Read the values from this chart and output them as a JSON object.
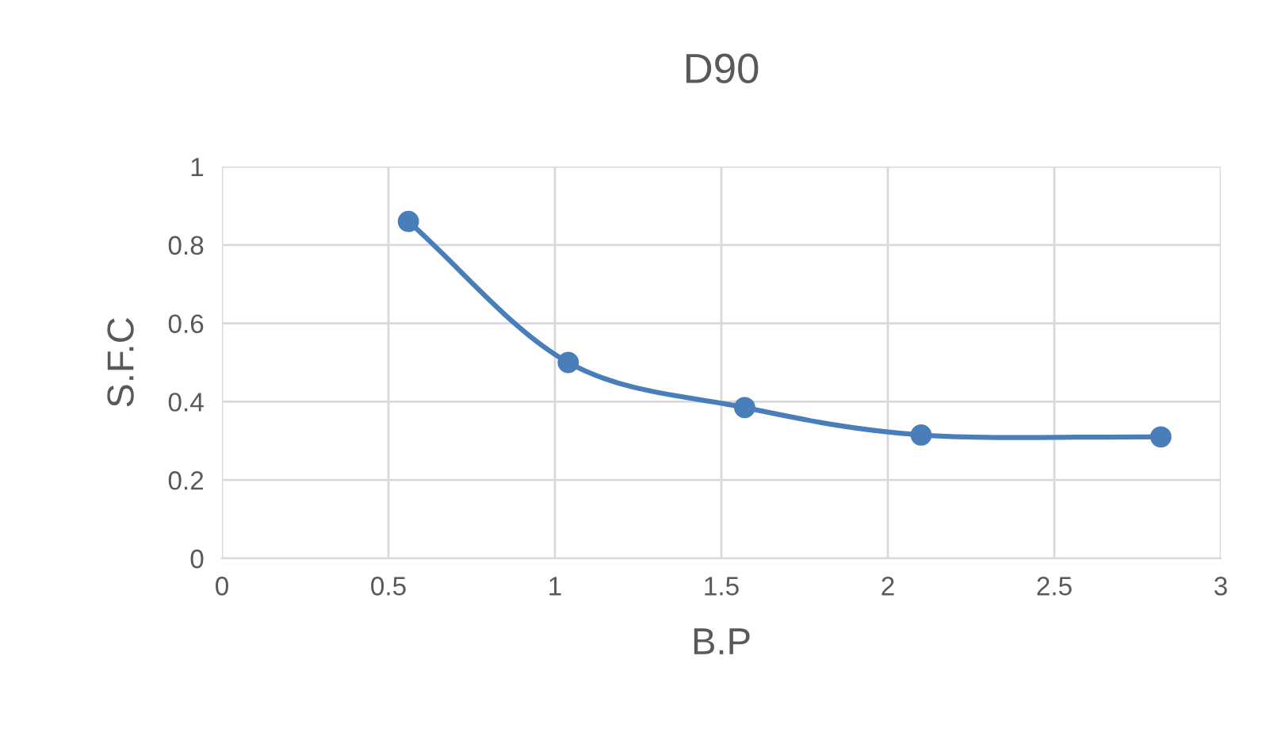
{
  "chart_data": {
    "type": "line",
    "title": "D90",
    "xlabel": "B.P",
    "ylabel": "S.F.C",
    "x": [
      0.56,
      1.04,
      1.57,
      2.1,
      2.82
    ],
    "series": [
      {
        "color": "#4a7ebb",
        "values": [
          0.86,
          0.5,
          0.385,
          0.315,
          0.31
        ]
      }
    ],
    "xlim": [
      0,
      3
    ],
    "xticks": [
      0,
      0.5,
      1,
      1.5,
      2,
      2.5,
      3
    ],
    "ylim": [
      0,
      1
    ],
    "yticks": [
      0,
      0.2,
      0.4,
      0.6,
      0.8,
      1
    ],
    "grid": true,
    "marker": "circle",
    "line_style": "solid"
  }
}
